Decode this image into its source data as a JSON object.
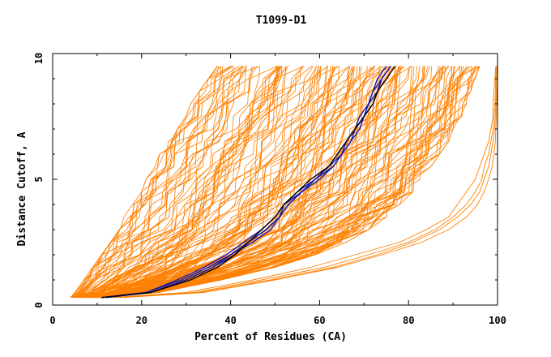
{
  "chart_data": {
    "type": "line",
    "title": "T1099-D1",
    "xlabel": "Percent of Residues (CA)",
    "ylabel": "Distance Cutoff, A",
    "xlim": [
      0,
      100
    ],
    "ylim": [
      0,
      10
    ],
    "x_ticks": [
      0,
      20,
      40,
      60,
      80,
      100
    ],
    "y_ticks": [
      0,
      5,
      10
    ],
    "x_tick_labels": [
      "0",
      "20",
      "40",
      "60",
      "80",
      "100"
    ],
    "y_tick_labels": [
      "0",
      "5",
      "10"
    ],
    "grid": false,
    "legend": "none",
    "colors": {
      "models": "#ff8000",
      "highlight": "#1a1aa6",
      "highlight_dark": "#000000"
    },
    "y_levels": [
      0.3,
      0.5,
      1.0,
      1.5,
      2.0,
      2.5,
      3.0,
      3.5,
      4.0,
      4.5,
      5.0,
      5.5,
      6.0,
      6.5,
      7.0,
      7.5,
      8.0,
      8.5,
      9.0,
      9.5
    ],
    "model_count": 150,
    "model_envelope": {
      "left": [
        4,
        5,
        7,
        9,
        11,
        13,
        15,
        16,
        18,
        20,
        21,
        23,
        24,
        26,
        28,
        30,
        31,
        33,
        35,
        37
      ],
      "right": [
        11,
        24,
        38,
        50,
        59,
        66,
        71,
        75,
        78,
        81,
        83,
        85,
        87,
        89,
        90,
        92,
        93,
        94,
        95,
        96
      ]
    },
    "outlier_series": [
      {
        "x": [
          13,
          30,
          45,
          58,
          68,
          78,
          84,
          89,
          91,
          93,
          95,
          96,
          97,
          98,
          98.5,
          99,
          99,
          99.2,
          99.4,
          99.6
        ]
      },
      {
        "x": [
          14,
          32,
          47,
          61,
          71,
          80,
          86,
          90,
          93,
          95,
          96.5,
          97,
          98,
          98.5,
          99,
          99.2,
          99.4,
          99.5,
          99.6,
          99.7
        ]
      },
      {
        "x": [
          15,
          33,
          49,
          63,
          73,
          81,
          87,
          91,
          94,
          96,
          97,
          98,
          98.5,
          99,
          99.3,
          99.5,
          99.6,
          99.7,
          99.8,
          99.9
        ]
      },
      {
        "x": [
          16,
          34,
          50,
          64,
          74,
          83,
          89,
          93,
          95.5,
          97,
          98,
          98.8,
          99.2,
          99.5,
          99.6,
          99.7,
          99.8,
          99.9,
          100,
          100
        ]
      }
    ],
    "series": [
      {
        "x": [
          11,
          21,
          29,
          35,
          40,
          44,
          48,
          51,
          52,
          56,
          60,
          63,
          65,
          67,
          69,
          70,
          71,
          72,
          74,
          76
        ],
        "color": "#1a1aa6"
      },
      {
        "x": [
          12,
          22,
          30,
          36,
          40,
          45,
          49,
          51,
          53,
          56,
          59,
          62,
          65,
          67,
          68,
          70,
          72,
          73,
          74,
          76
        ],
        "color": "#1a1aa6"
      },
      {
        "x": [
          11,
          21,
          28,
          34,
          39,
          43,
          47,
          50,
          52,
          55,
          59,
          62,
          64,
          66,
          68,
          69,
          71,
          72,
          73,
          75
        ],
        "color": "#1a1aa6"
      },
      {
        "x": [
          12,
          22,
          30,
          36,
          41,
          44,
          48,
          51,
          53,
          56,
          59,
          63,
          65,
          66,
          68,
          70,
          71,
          73,
          74,
          76
        ],
        "color": "#1a1aa6"
      },
      {
        "x": [
          11,
          22,
          31,
          37,
          41,
          44,
          47,
          50,
          52,
          55,
          58,
          62,
          64,
          66,
          68,
          70,
          72,
          73,
          75,
          77
        ],
        "color": "#000000"
      }
    ]
  }
}
